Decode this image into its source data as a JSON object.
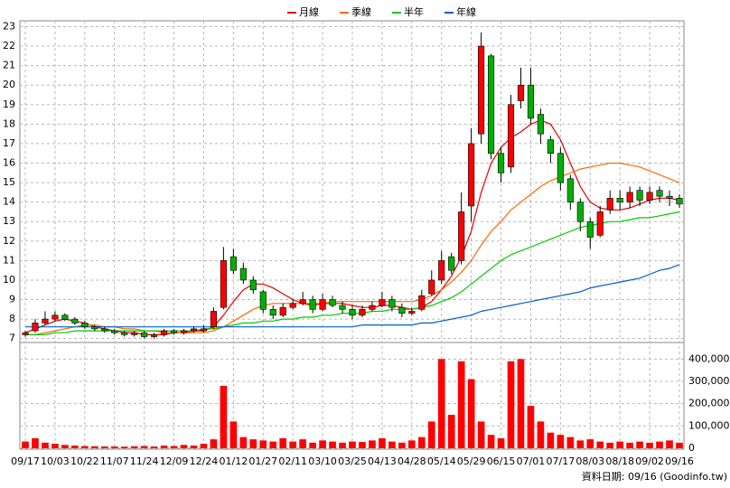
{
  "chart_data": {
    "type": "candlestick",
    "legend": "top",
    "grid": true,
    "footer": "資料日期: 09/16 (Goodinfo.tw)",
    "up_color": "#ff0000",
    "down_color": "#00b000",
    "categories": [
      "09/17",
      null,
      null,
      "10/03",
      null,
      null,
      "10/22",
      null,
      null,
      "11/07",
      null,
      null,
      "11/24",
      null,
      null,
      "12/09",
      null,
      null,
      "12/24",
      null,
      null,
      "01/12",
      null,
      null,
      "01/27",
      null,
      null,
      "02/11",
      null,
      null,
      "03/10",
      null,
      null,
      "03/25",
      null,
      null,
      "04/13",
      null,
      null,
      "04/28",
      null,
      null,
      "05/14",
      null,
      null,
      "05/29",
      null,
      null,
      "06/15",
      null,
      null,
      "07/01",
      null,
      null,
      "07/17",
      null,
      null,
      "08/03",
      null,
      null,
      "08/18",
      null,
      null,
      "09/02",
      null,
      null,
      "09/16"
    ],
    "open": [
      7.2,
      7.4,
      7.8,
      8.0,
      8.2,
      8.0,
      7.8,
      7.6,
      7.5,
      7.4,
      7.3,
      7.2,
      7.3,
      7.1,
      7.2,
      7.4,
      7.3,
      7.4,
      7.4,
      7.6,
      8.6,
      11.2,
      10.6,
      10.0,
      9.4,
      8.5,
      8.2,
      8.6,
      8.8,
      9.0,
      8.5,
      9.0,
      8.7,
      8.5,
      8.2,
      8.5,
      8.7,
      9.0,
      8.6,
      8.3,
      8.5,
      9.3,
      10.0,
      11.2,
      11.0,
      13.8,
      17.5,
      21.5,
      16.5,
      15.8,
      19.2,
      20.0,
      18.5,
      17.2,
      16.5,
      15.2,
      14.0,
      13.0,
      12.3,
      13.6,
      14.2,
      14.0,
      14.6,
      14.1,
      14.6,
      14.3,
      14.2
    ],
    "high": [
      7.4,
      8.0,
      8.4,
      8.4,
      8.3,
      8.1,
      7.9,
      7.7,
      7.6,
      7.5,
      7.4,
      7.4,
      7.4,
      7.3,
      7.5,
      7.5,
      7.5,
      7.6,
      7.7,
      8.6,
      11.7,
      11.6,
      10.9,
      10.2,
      9.5,
      8.7,
      8.8,
      9.0,
      9.4,
      9.2,
      9.3,
      9.2,
      8.9,
      8.7,
      8.7,
      8.9,
      9.4,
      9.2,
      8.8,
      8.6,
      9.5,
      10.5,
      11.5,
      11.4,
      14.5,
      17.8,
      22.7,
      21.6,
      16.8,
      19.5,
      20.9,
      20.9,
      18.8,
      17.4,
      16.8,
      15.4,
      14.2,
      13.2,
      13.8,
      14.6,
      14.6,
      14.8,
      14.8,
      14.8,
      14.8,
      14.6,
      14.4
    ],
    "low": [
      7.1,
      7.3,
      7.7,
      7.9,
      7.9,
      7.7,
      7.5,
      7.4,
      7.3,
      7.2,
      7.1,
      7.1,
      7.0,
      7.0,
      7.1,
      7.2,
      7.2,
      7.3,
      7.3,
      7.5,
      8.5,
      10.3,
      9.8,
      9.3,
      8.3,
      8.0,
      8.1,
      8.5,
      8.7,
      8.3,
      8.4,
      8.6,
      8.3,
      8.0,
      8.1,
      8.4,
      8.6,
      8.4,
      8.1,
      8.2,
      8.4,
      9.2,
      9.8,
      10.3,
      10.8,
      13.0,
      17.0,
      16.2,
      15.0,
      15.5,
      18.8,
      18.0,
      17.0,
      16.0,
      14.6,
      13.6,
      12.5,
      11.6,
      12.2,
      13.4,
      13.6,
      13.7,
      13.8,
      13.9,
      14.0,
      13.8,
      13.7
    ],
    "close": [
      7.3,
      7.8,
      8.0,
      8.2,
      8.0,
      7.8,
      7.6,
      7.5,
      7.4,
      7.3,
      7.2,
      7.3,
      7.1,
      7.2,
      7.4,
      7.3,
      7.4,
      7.5,
      7.5,
      8.4,
      11.0,
      10.5,
      10.0,
      9.5,
      8.5,
      8.2,
      8.6,
      8.8,
      9.0,
      8.5,
      9.0,
      8.7,
      8.5,
      8.2,
      8.5,
      8.7,
      9.0,
      8.6,
      8.3,
      8.4,
      9.2,
      10.0,
      11.0,
      10.5,
      13.5,
      17.0,
      22.0,
      16.5,
      15.5,
      19.0,
      20.0,
      18.3,
      17.5,
      16.5,
      15.0,
      14.0,
      13.0,
      12.2,
      13.5,
      14.2,
      14.0,
      14.5,
      14.1,
      14.5,
      14.3,
      14.2,
      13.9
    ],
    "series": [
      {
        "name": "月線",
        "color": "#e00000",
        "values": [
          7.3,
          7.5,
          7.7,
          7.9,
          8.0,
          7.9,
          7.8,
          7.6,
          7.5,
          7.4,
          7.3,
          7.3,
          7.2,
          7.2,
          7.2,
          7.3,
          7.3,
          7.4,
          7.4,
          7.6,
          8.2,
          8.9,
          9.5,
          9.8,
          9.8,
          9.6,
          9.3,
          9.0,
          8.8,
          8.7,
          8.8,
          8.8,
          8.8,
          8.7,
          8.6,
          8.6,
          8.7,
          8.7,
          8.6,
          8.5,
          8.6,
          8.9,
          9.5,
          10.2,
          11.2,
          12.5,
          14.5,
          16.0,
          16.8,
          17.3,
          17.6,
          18.0,
          18.2,
          18.0,
          17.2,
          16.0,
          14.8,
          14.0,
          13.7,
          13.6,
          13.6,
          13.7,
          13.9,
          14.1,
          14.2,
          14.2,
          14.1
        ]
      },
      {
        "name": "季線",
        "color": "#ff6a00",
        "values": [
          7.2,
          7.2,
          7.3,
          7.4,
          7.5,
          7.6,
          7.7,
          7.7,
          7.6,
          7.6,
          7.5,
          7.5,
          7.4,
          7.4,
          7.3,
          7.3,
          7.3,
          7.3,
          7.3,
          7.4,
          7.6,
          7.9,
          8.2,
          8.5,
          8.7,
          8.8,
          8.8,
          8.8,
          8.8,
          8.8,
          8.8,
          8.9,
          8.9,
          8.9,
          8.9,
          8.9,
          8.9,
          8.9,
          8.9,
          8.9,
          9.0,
          9.2,
          9.5,
          9.9,
          10.4,
          11.0,
          11.8,
          12.5,
          13.0,
          13.6,
          14.0,
          14.4,
          14.8,
          15.1,
          15.3,
          15.5,
          15.7,
          15.8,
          15.9,
          16.0,
          16.0,
          15.9,
          15.8,
          15.6,
          15.4,
          15.2,
          15.0
        ]
      },
      {
        "name": "半年",
        "color": "#00cc00",
        "values": [
          7.2,
          7.2,
          7.2,
          7.3,
          7.3,
          7.4,
          7.4,
          7.4,
          7.4,
          7.4,
          7.4,
          7.4,
          7.4,
          7.4,
          7.4,
          7.4,
          7.4,
          7.4,
          7.5,
          7.5,
          7.6,
          7.7,
          7.8,
          7.8,
          7.9,
          7.9,
          8.0,
          8.0,
          8.1,
          8.1,
          8.2,
          8.2,
          8.3,
          8.3,
          8.3,
          8.4,
          8.4,
          8.5,
          8.5,
          8.5,
          8.6,
          8.7,
          8.9,
          9.1,
          9.4,
          9.8,
          10.2,
          10.6,
          11.0,
          11.3,
          11.5,
          11.7,
          11.9,
          12.1,
          12.3,
          12.5,
          12.7,
          12.8,
          12.9,
          13.0,
          13.0,
          13.1,
          13.2,
          13.2,
          13.3,
          13.4,
          13.5
        ]
      },
      {
        "name": "年線",
        "color": "#0060c8",
        "values": [
          7.6,
          7.6,
          7.6,
          7.6,
          7.6,
          7.6,
          7.6,
          7.6,
          7.6,
          7.6,
          7.6,
          7.6,
          7.6,
          7.6,
          7.6,
          7.6,
          7.6,
          7.6,
          7.6,
          7.6,
          7.6,
          7.6,
          7.6,
          7.6,
          7.6,
          7.6,
          7.6,
          7.6,
          7.6,
          7.6,
          7.6,
          7.6,
          7.6,
          7.6,
          7.7,
          7.7,
          7.7,
          7.7,
          7.7,
          7.7,
          7.8,
          7.8,
          7.9,
          8.0,
          8.1,
          8.2,
          8.4,
          8.5,
          8.6,
          8.7,
          8.8,
          8.9,
          9.0,
          9.1,
          9.2,
          9.3,
          9.4,
          9.6,
          9.7,
          9.8,
          9.9,
          10.0,
          10.1,
          10.3,
          10.5,
          10.6,
          10.8
        ]
      }
    ],
    "volume": {
      "color": "#ff0000",
      "values": [
        30000,
        45000,
        25000,
        20000,
        15000,
        12000,
        10000,
        9000,
        8000,
        8000,
        7000,
        9000,
        10000,
        8000,
        12000,
        10000,
        15000,
        12000,
        20000,
        40000,
        280000,
        120000,
        50000,
        40000,
        35000,
        30000,
        45000,
        30000,
        40000,
        25000,
        35000,
        30000,
        25000,
        30000,
        28000,
        35000,
        45000,
        30000,
        25000,
        35000,
        50000,
        120000,
        400000,
        150000,
        390000,
        310000,
        120000,
        60000,
        45000,
        390000,
        400000,
        190000,
        120000,
        70000,
        60000,
        50000,
        35000,
        40000,
        30000,
        25000,
        30000,
        25000,
        30000,
        25000,
        30000,
        35000,
        25000
      ]
    },
    "ylim": [
      6.8,
      23.3
    ],
    "yticks": [
      7,
      8,
      9,
      10,
      11,
      12,
      13,
      14,
      15,
      16,
      17,
      18,
      19,
      20,
      21,
      22,
      23
    ],
    "y2lim": [
      0,
      450000
    ],
    "y2ticks": [
      0,
      {
        "value": 100000,
        "label": "100,000"
      },
      {
        "value": 200000,
        "label": "200,000"
      },
      {
        "value": 300000,
        "label": "300,000"
      },
      {
        "value": 400000,
        "label": "400,000"
      }
    ]
  }
}
